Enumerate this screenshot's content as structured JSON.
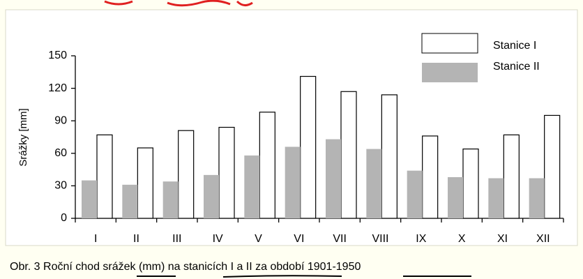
{
  "chart_data": {
    "type": "bar",
    "y_label": "Srážky [mm]",
    "categories": [
      "I",
      "II",
      "III",
      "IV",
      "V",
      "VI",
      "VII",
      "VIII",
      "IX",
      "X",
      "XI",
      "XII"
    ],
    "series": [
      {
        "name": "Stanice I",
        "color": "#ffffff",
        "values": [
          77,
          65,
          81,
          84,
          98,
          131,
          117,
          114,
          76,
          64,
          77,
          95
        ]
      },
      {
        "name": "Stanice II",
        "color": "#b4b4b4",
        "values": [
          35,
          31,
          34,
          40,
          58,
          66,
          73,
          64,
          44,
          38,
          37,
          37
        ]
      }
    ],
    "ylim": [
      0,
      150
    ],
    "yticks": [
      0,
      30,
      60,
      90,
      120,
      150
    ],
    "legend": "top-right",
    "caption": "Obr. 3 Roční chod srážek (mm) na stanicích I a II za období 1901-1950"
  }
}
